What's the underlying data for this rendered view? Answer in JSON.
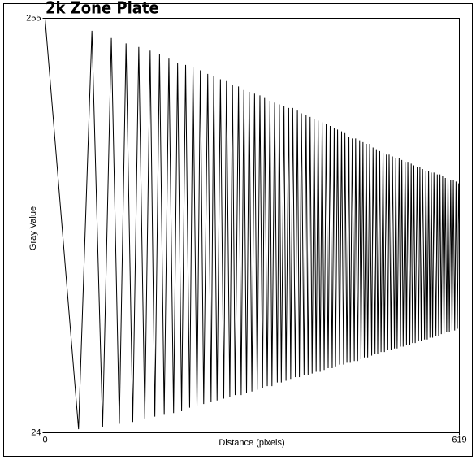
{
  "chart_data": {
    "type": "line",
    "title": "2k Zone Plate",
    "xlabel": "Distance (pixels)",
    "ylabel": "Gray Value",
    "xlim": [
      0,
      619
    ],
    "xticks": [
      0,
      619
    ],
    "ylim": [
      24,
      255
    ],
    "yticks": [
      24,
      255
    ],
    "color": "#000000",
    "x": [
      0,
      50,
      70,
      86,
      99,
      111,
      121,
      131,
      140,
      149,
      157,
      164,
      171,
      178,
      185,
      192,
      198,
      204,
      210,
      216,
      221,
      227,
      232,
      237,
      243,
      248,
      252,
      257,
      262,
      267,
      271,
      276,
      280,
      284,
      289,
      293,
      297,
      301,
      305,
      309,
      313,
      317,
      321,
      325,
      328,
      332,
      336,
      339,
      343,
      347,
      350,
      353,
      357,
      360,
      364,
      367,
      370,
      374,
      377,
      380,
      383,
      387,
      390,
      393,
      396,
      399,
      402,
      405,
      408,
      411,
      414,
      417,
      420,
      423,
      426,
      429,
      432,
      434,
      437,
      440,
      443,
      446,
      448,
      451,
      454,
      456,
      459,
      462,
      464,
      467,
      470,
      472,
      475,
      477,
      480,
      482,
      485,
      488,
      490,
      493,
      495,
      497,
      500,
      502,
      505,
      507,
      510,
      512,
      514,
      517,
      519,
      522,
      524,
      526,
      529,
      531,
      533,
      535,
      538,
      540,
      542,
      545,
      547,
      549,
      551,
      553,
      556,
      558,
      560,
      562,
      564,
      567,
      569,
      571,
      573,
      575,
      577,
      579,
      581,
      584,
      586,
      588,
      590,
      592,
      594,
      596,
      598,
      600,
      602,
      604,
      606,
      608,
      610,
      612,
      614,
      616,
      618,
      619
    ],
    "values": [
      255,
      26,
      248,
      27,
      244,
      29,
      241,
      30,
      239,
      32,
      237,
      33,
      235,
      34,
      233,
      35,
      230,
      36,
      229,
      38,
      228,
      39,
      226,
      40,
      224,
      41,
      223,
      42,
      221,
      43,
      220,
      44,
      218,
      45,
      217,
      45,
      215,
      46,
      214,
      47,
      213,
      48,
      212,
      49,
      211,
      50,
      209,
      50,
      208,
      52,
      207,
      52,
      206,
      53,
      205,
      54,
      205,
      55,
      204,
      55,
      202,
      56,
      201,
      56,
      200,
      57,
      199,
      58,
      198,
      58,
      197,
      59,
      196,
      60,
      195,
      60,
      194,
      61,
      193,
      62,
      192,
      62,
      191,
      63,
      189,
      63,
      188,
      64,
      188,
      64,
      187,
      65,
      186,
      66,
      185,
      66,
      185,
      67,
      183,
      68,
      182,
      68,
      181,
      69,
      180,
      69,
      179,
      70,
      179,
      70,
      178,
      71,
      177,
      71,
      177,
      72,
      176,
      72,
      175,
      73,
      175,
      73,
      174,
      74,
      173,
      74,
      172,
      75,
      172,
      75,
      171,
      76,
      170,
      76,
      170,
      77,
      169,
      77,
      169,
      78,
      168,
      78,
      168,
      79,
      167,
      79,
      166,
      80,
      166,
      80,
      165,
      81,
      165,
      81,
      164,
      82,
      163,
      140
    ]
  }
}
